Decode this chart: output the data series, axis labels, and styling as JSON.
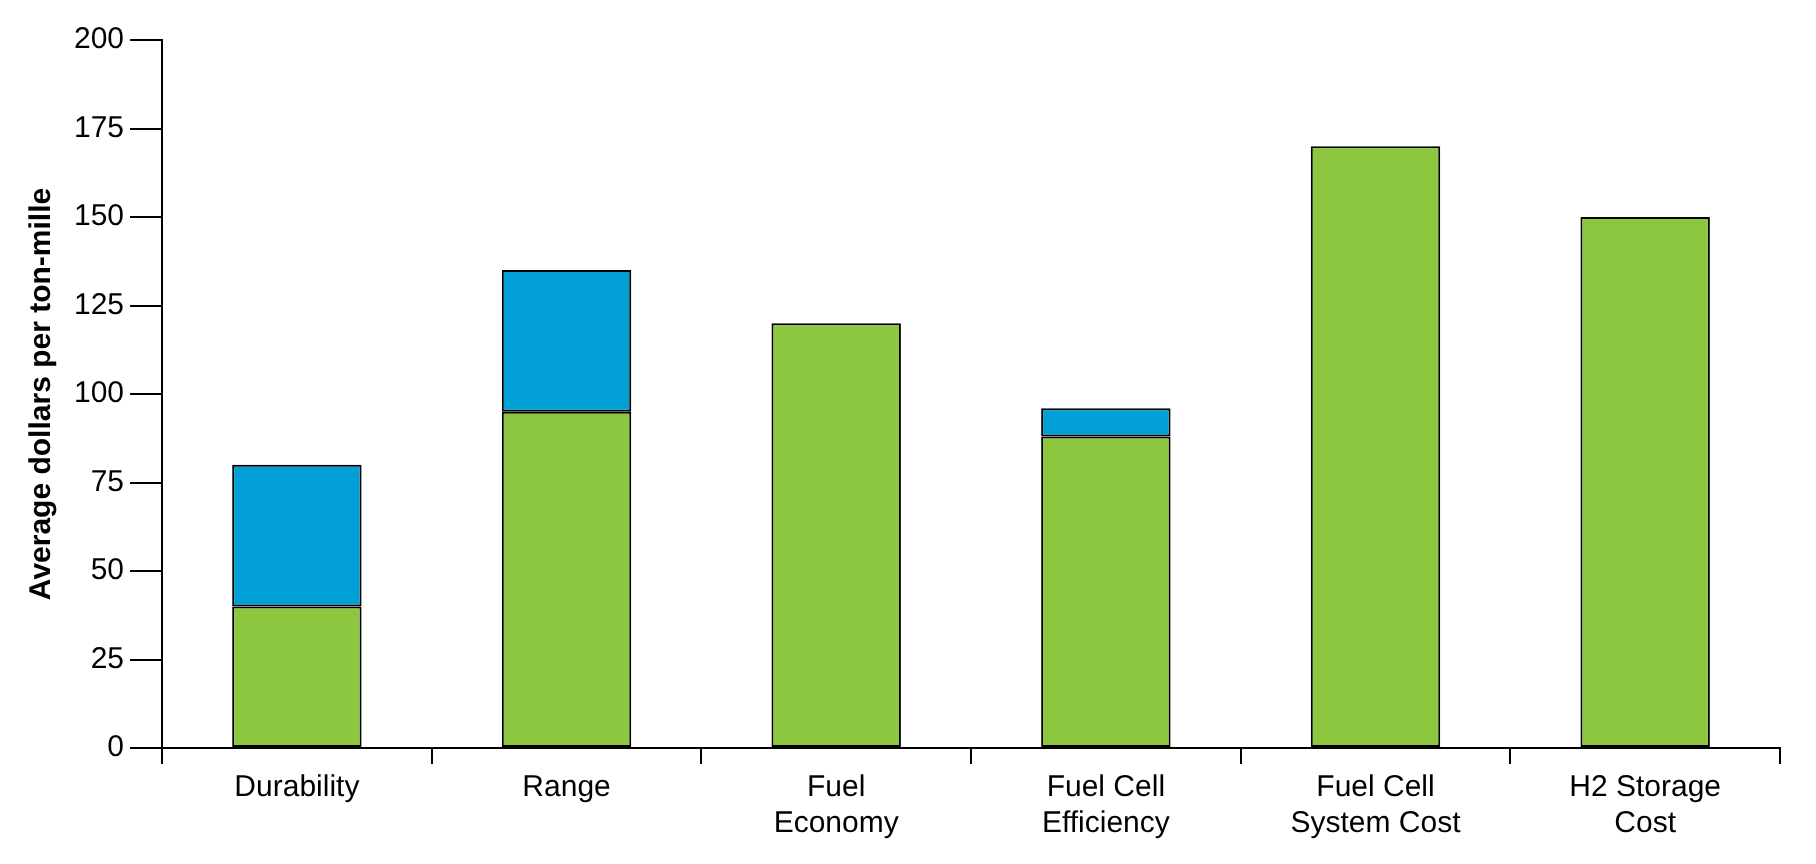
{
  "chart_data": {
    "type": "bar",
    "ylabel": "Average dollars per ton-mille",
    "categories": [
      "Durability",
      "Range",
      "Fuel\nEconomy",
      "Fuel Cell\nEfficiency",
      "Fuel Cell\nSystem Cost",
      "H2 Storage\nCost"
    ],
    "stacked": true,
    "series": [
      {
        "color": "#8dc63f",
        "values": [
          40,
          95,
          120,
          88,
          170,
          150
        ]
      },
      {
        "color": "#00a0d6",
        "values": [
          40,
          40,
          null,
          8,
          null,
          null
        ]
      }
    ],
    "ylim": [
      0,
      200
    ],
    "yticks": [
      0,
      25,
      50,
      75,
      100,
      125,
      150,
      175,
      200
    ],
    "grid": false,
    "legend": false
  }
}
